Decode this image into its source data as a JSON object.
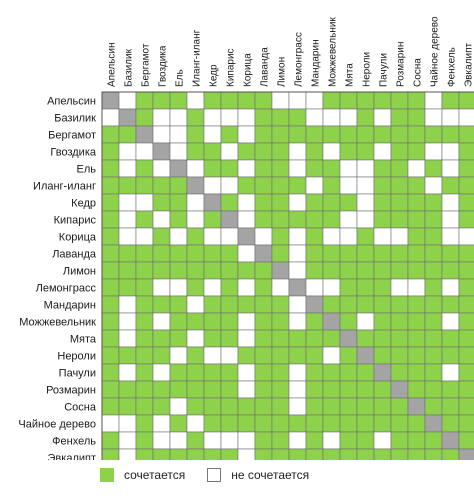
{
  "chart_data": {
    "type": "heatmap",
    "labels": [
      "Апельсин",
      "Базилик",
      "Бергамот",
      "Гвоздика",
      "Ель",
      "Иланг-иланг",
      "Кедр",
      "Кипарис",
      "Корица",
      "Лаванда",
      "Лимон",
      "Лемонграсс",
      "Мандарин",
      "Можжевельник",
      "Мята",
      "Нероли",
      "Пачули",
      "Розмарин",
      "Сосна",
      "Чайное дерево",
      "Фенхель",
      "Эвкалипт"
    ],
    "matrix": [
      [
        2,
        0,
        1,
        1,
        1,
        0,
        1,
        1,
        1,
        1,
        0,
        0,
        0,
        1,
        1,
        1,
        1,
        1,
        1,
        0,
        1,
        1
      ],
      [
        0,
        2,
        1,
        0,
        0,
        1,
        0,
        0,
        0,
        1,
        1,
        1,
        0,
        0,
        0,
        1,
        0,
        1,
        1,
        0,
        0,
        0
      ],
      [
        1,
        1,
        2,
        0,
        0,
        1,
        0,
        1,
        0,
        1,
        1,
        1,
        1,
        1,
        1,
        1,
        1,
        1,
        1,
        1,
        1,
        1
      ],
      [
        1,
        0,
        0,
        2,
        0,
        1,
        1,
        0,
        1,
        1,
        1,
        0,
        1,
        0,
        1,
        1,
        0,
        1,
        1,
        0,
        0,
        1
      ],
      [
        1,
        0,
        1,
        0,
        2,
        0,
        1,
        1,
        0,
        1,
        1,
        0,
        1,
        1,
        0,
        0,
        1,
        1,
        0,
        1,
        0,
        1
      ],
      [
        1,
        1,
        1,
        1,
        1,
        2,
        0,
        0,
        1,
        1,
        1,
        1,
        0,
        1,
        0,
        0,
        1,
        1,
        1,
        0,
        1,
        1
      ],
      [
        1,
        0,
        0,
        1,
        1,
        0,
        2,
        1,
        0,
        1,
        1,
        0,
        1,
        1,
        1,
        0,
        1,
        1,
        1,
        1,
        0,
        1
      ],
      [
        1,
        0,
        1,
        0,
        1,
        0,
        1,
        2,
        0,
        1,
        1,
        1,
        1,
        1,
        0,
        0,
        1,
        1,
        1,
        1,
        0,
        1
      ],
      [
        1,
        0,
        0,
        1,
        0,
        1,
        0,
        0,
        2,
        0,
        1,
        0,
        1,
        0,
        0,
        1,
        0,
        0,
        1,
        1,
        0,
        0
      ],
      [
        1,
        1,
        1,
        1,
        1,
        1,
        1,
        1,
        0,
        2,
        1,
        0,
        1,
        1,
        1,
        1,
        1,
        1,
        1,
        1,
        1,
        1
      ],
      [
        1,
        1,
        1,
        1,
        1,
        1,
        1,
        1,
        1,
        1,
        2,
        0,
        1,
        1,
        1,
        1,
        1,
        1,
        1,
        1,
        1,
        1
      ],
      [
        1,
        1,
        1,
        0,
        0,
        1,
        0,
        1,
        0,
        1,
        0,
        2,
        0,
        0,
        1,
        1,
        1,
        0,
        0,
        1,
        0,
        1
      ],
      [
        1,
        0,
        1,
        1,
        1,
        0,
        1,
        1,
        1,
        1,
        1,
        0,
        2,
        1,
        1,
        1,
        1,
        1,
        1,
        1,
        1,
        1
      ],
      [
        1,
        0,
        1,
        0,
        1,
        1,
        1,
        1,
        0,
        1,
        1,
        0,
        1,
        2,
        1,
        0,
        1,
        1,
        1,
        1,
        0,
        1
      ],
      [
        1,
        0,
        1,
        1,
        1,
        0,
        1,
        1,
        0,
        1,
        1,
        1,
        1,
        1,
        2,
        1,
        1,
        1,
        1,
        1,
        1,
        1
      ],
      [
        1,
        1,
        1,
        1,
        0,
        1,
        0,
        0,
        1,
        1,
        1,
        1,
        1,
        0,
        1,
        2,
        1,
        1,
        1,
        1,
        1,
        1
      ],
      [
        1,
        0,
        1,
        0,
        1,
        1,
        1,
        1,
        0,
        1,
        1,
        0,
        1,
        1,
        1,
        1,
        2,
        1,
        1,
        1,
        0,
        1
      ],
      [
        1,
        1,
        1,
        1,
        1,
        1,
        1,
        1,
        0,
        1,
        1,
        0,
        1,
        1,
        1,
        1,
        1,
        2,
        1,
        1,
        1,
        1
      ],
      [
        1,
        1,
        1,
        1,
        0,
        1,
        1,
        1,
        1,
        1,
        1,
        0,
        1,
        1,
        1,
        1,
        1,
        1,
        2,
        1,
        1,
        1
      ],
      [
        0,
        0,
        1,
        0,
        1,
        0,
        1,
        1,
        1,
        1,
        1,
        1,
        1,
        1,
        1,
        1,
        1,
        1,
        1,
        2,
        1,
        1
      ],
      [
        1,
        0,
        1,
        0,
        0,
        1,
        0,
        0,
        0,
        1,
        1,
        0,
        1,
        0,
        1,
        1,
        0,
        1,
        1,
        1,
        2,
        1
      ],
      [
        1,
        0,
        1,
        1,
        1,
        1,
        1,
        1,
        0,
        1,
        1,
        1,
        1,
        1,
        1,
        1,
        1,
        1,
        1,
        1,
        1,
        2
      ]
    ],
    "colors": {
      "match": "#8ed14b",
      "no_match": "#ffffff",
      "diagonal": "#a4a4a4",
      "grid": "#6f6f6f"
    },
    "legend": [
      {
        "label": "сочетается",
        "value": 1
      },
      {
        "label": "не сочетается",
        "value": 0
      }
    ],
    "legend_position": "bottom"
  }
}
